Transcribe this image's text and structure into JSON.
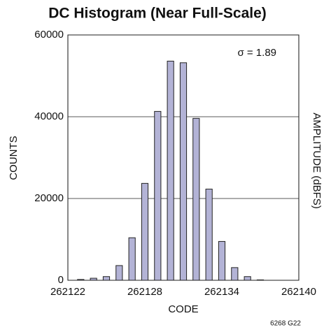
{
  "chart_data": {
    "type": "histogram",
    "title": "DC Histogram (Near Full-Scale)",
    "x_label": "CODE",
    "y_label": "COUNTS",
    "annotation": "σ = 1.89",
    "figure_id": "6268 G22",
    "clipped_label": "AMPLITUDE (dBFS)",
    "bins": [
      262122.5,
      262123.5,
      262124.5,
      262125.5,
      262126.5,
      262127.5,
      262128.5,
      262129.5,
      262130.5,
      262131.5,
      262132.5,
      262133.5,
      262134.5,
      262135.5,
      262136.5,
      262137.5
    ],
    "values": [
      200,
      500,
      900,
      3600,
      10400,
      23700,
      41300,
      53600,
      53200,
      39600,
      22300,
      9500,
      3100,
      900,
      100
    ],
    "color": "#b3b3d6",
    "xlim": [
      262122,
      262140
    ],
    "xticks": [
      262122,
      262128,
      262134,
      262140
    ],
    "ylim": [
      0,
      60000
    ],
    "yticks": [
      0,
      20000,
      40000,
      60000
    ],
    "grid": true
  }
}
